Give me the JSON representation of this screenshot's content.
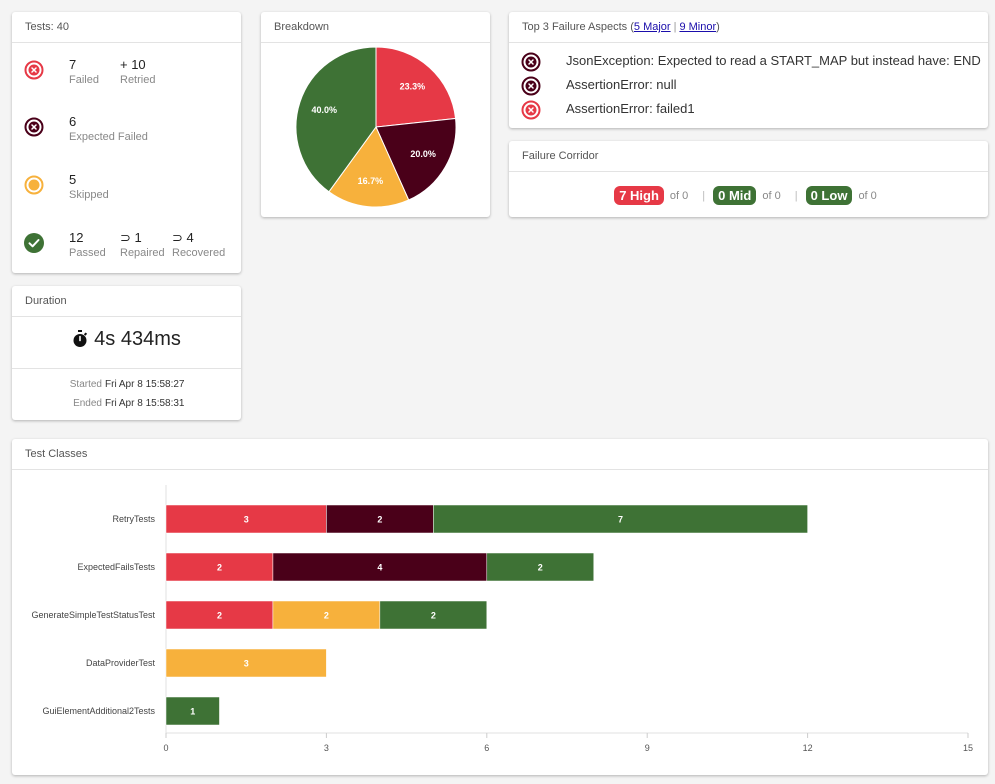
{
  "colors": {
    "failed": "#e63946",
    "expected_failed": "#4a0019",
    "skipped": "#f7b13c",
    "passed": "#3e7235",
    "text": "#333333"
  },
  "tests_card": {
    "title": "Tests: 40",
    "failed": {
      "value": "7",
      "label": "Failed",
      "retried_value": "+ 10",
      "retried_label": "Retried"
    },
    "expected_failed": {
      "value": "6",
      "label": "Expected Failed"
    },
    "skipped": {
      "value": "5",
      "label": "Skipped"
    },
    "passed": {
      "value": "12",
      "label": "Passed",
      "repaired_value": "⊃ 1",
      "repaired_label": "Repaired",
      "recovered_value": "⊃ 4",
      "recovered_label": "Recovered"
    }
  },
  "breakdown": {
    "title": "Breakdown",
    "slices": [
      {
        "label": "23.3%",
        "percent": 23.3,
        "color": "#e63946"
      },
      {
        "label": "20.0%",
        "percent": 20.0,
        "color": "#4a0019"
      },
      {
        "label": "16.7%",
        "percent": 16.7,
        "color": "#f7b13c"
      },
      {
        "label": "40.0%",
        "percent": 40.0,
        "color": "#3e7235"
      }
    ]
  },
  "failure_aspects": {
    "title_prefix": "Top 3 Failure Aspects (",
    "major_link": "5 Major",
    "separator": "|",
    "minor_link": "9 Minor",
    "title_suffix": ")",
    "items": [
      {
        "text": "JsonException: Expected to read a START_MAP but instead have: END",
        "kind": "expected_failed"
      },
      {
        "text": "AssertionError: null",
        "kind": "expected_failed"
      },
      {
        "text": "AssertionError: failed1",
        "kind": "failed"
      }
    ]
  },
  "failure_corridor": {
    "title": "Failure Corridor",
    "high": {
      "badge": "7 High",
      "of": "of 0",
      "color": "#e63946"
    },
    "mid": {
      "badge": "0 Mid",
      "of": "of 0",
      "color": "#3e7235"
    },
    "low": {
      "badge": "0 Low",
      "of": "of 0",
      "color": "#3e7235"
    },
    "pipe": "|"
  },
  "duration": {
    "title": "Duration",
    "value": "4s 434ms",
    "started_label": "Started",
    "started_value": "Fri Apr 8 15:58:27",
    "ended_label": "Ended",
    "ended_value": "Fri Apr 8 15:58:31"
  },
  "test_classes": {
    "title": "Test Classes",
    "chart_data": {
      "type": "bar",
      "orientation": "horizontal",
      "stacked": true,
      "categories": [
        "RetryTests",
        "ExpectedFailsTests",
        "GenerateSimpleTestStatusTest",
        "DataProviderTest",
        "GuiElementAdditional2Tests"
      ],
      "series": [
        {
          "values": [
            3,
            2,
            2,
            0,
            0
          ],
          "color": "#e63946"
        },
        {
          "values": [
            2,
            4,
            0,
            0,
            0
          ],
          "color": "#4a0019"
        },
        {
          "values": [
            0,
            0,
            2,
            3,
            0
          ],
          "color": "#f7b13c"
        },
        {
          "values": [
            7,
            2,
            2,
            0,
            1
          ],
          "color": "#3e7235"
        }
      ],
      "xlim": [
        0,
        15
      ],
      "xticks": [
        0,
        3,
        6,
        9,
        12,
        15
      ],
      "legend": "none",
      "grid": false
    }
  }
}
